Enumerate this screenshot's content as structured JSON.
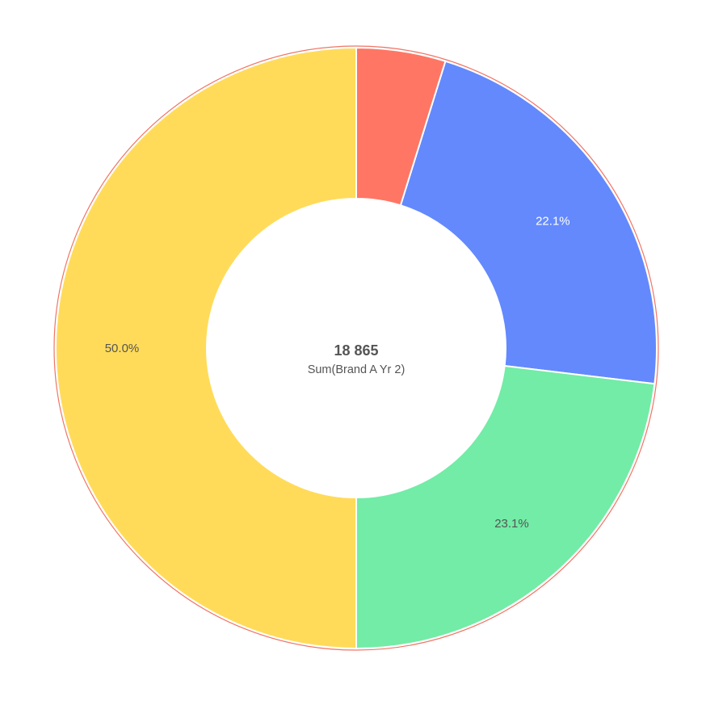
{
  "chart_data": {
    "type": "pie",
    "style": "donut",
    "center_value": "18 865",
    "center_caption": "Sum(Brand A Yr 2)",
    "slices": [
      {
        "label": "",
        "value": 4.8,
        "color": "#ff7664",
        "label_color": "#ffffff"
      },
      {
        "label": "22.1%",
        "value": 22.1,
        "color": "#6389fd",
        "label_color": "#ffffff"
      },
      {
        "label": "23.1%",
        "value": 23.1,
        "color": "#72eca6",
        "label_color": "#555555"
      },
      {
        "label": "50.0%",
        "value": 50.0,
        "color": "#ffdb59",
        "label_color": "#555555"
      }
    ]
  }
}
